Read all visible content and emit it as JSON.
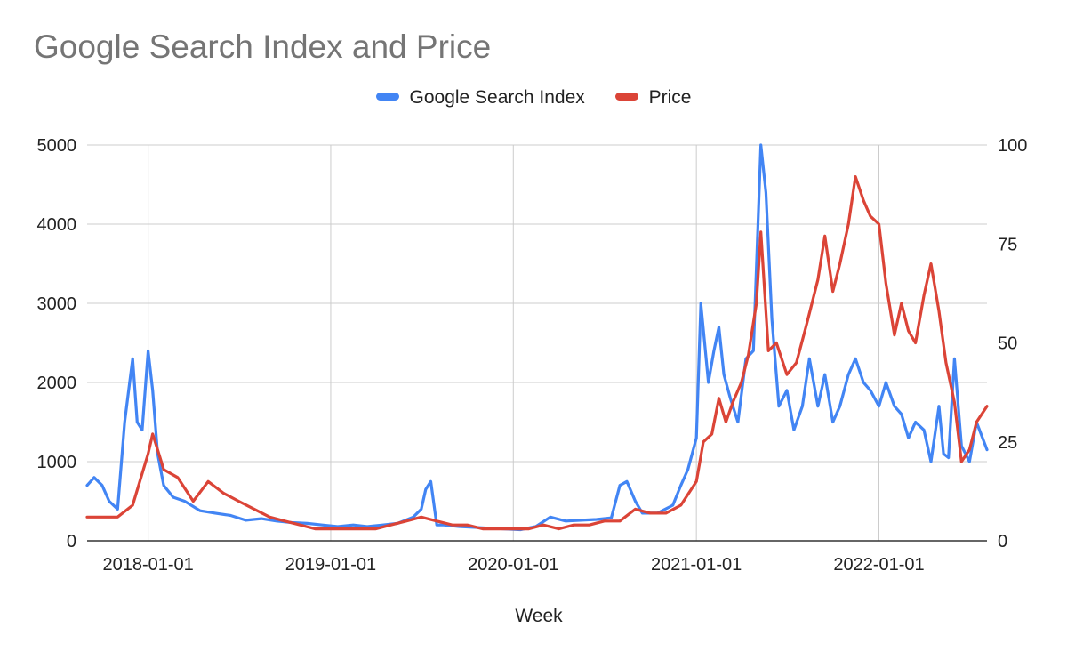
{
  "chart_data": {
    "type": "line",
    "title": "Google Search Index and Price",
    "xlabel": "Week",
    "ylabel_left": "",
    "ylabel_right": "",
    "x_start": "2017-09-01",
    "x_end": "2022-08-05",
    "y_left_lim": [
      0,
      5000
    ],
    "y_left_ticks": [
      "0",
      "1000",
      "2000",
      "3000",
      "4000",
      "5000"
    ],
    "y_right_lim": [
      0,
      100
    ],
    "y_right_ticks": [
      "0",
      "25",
      "50",
      "75",
      "100"
    ],
    "x_ticks": [
      "2018-01-01",
      "2019-01-01",
      "2020-01-01",
      "2021-01-01",
      "2022-01-01"
    ],
    "grid": true,
    "legend_position": "top",
    "series": [
      {
        "name": "Google Search Index",
        "axis": "left",
        "color": "#4285f4",
        "points": [
          [
            "2017-09-01",
            700
          ],
          [
            "2017-09-15",
            800
          ],
          [
            "2017-10-01",
            700
          ],
          [
            "2017-10-15",
            500
          ],
          [
            "2017-11-01",
            400
          ],
          [
            "2017-11-15",
            1500
          ],
          [
            "2017-12-01",
            2300
          ],
          [
            "2017-12-10",
            1500
          ],
          [
            "2017-12-20",
            1400
          ],
          [
            "2018-01-01",
            2400
          ],
          [
            "2018-01-10",
            1900
          ],
          [
            "2018-01-20",
            1100
          ],
          [
            "2018-02-01",
            700
          ],
          [
            "2018-02-20",
            550
          ],
          [
            "2018-03-15",
            500
          ],
          [
            "2018-04-15",
            380
          ],
          [
            "2018-05-15",
            350
          ],
          [
            "2018-06-15",
            320
          ],
          [
            "2018-07-15",
            260
          ],
          [
            "2018-08-15",
            280
          ],
          [
            "2018-09-15",
            250
          ],
          [
            "2018-10-15",
            230
          ],
          [
            "2018-11-15",
            220
          ],
          [
            "2018-12-15",
            200
          ],
          [
            "2019-01-15",
            180
          ],
          [
            "2019-02-15",
            200
          ],
          [
            "2019-03-15",
            180
          ],
          [
            "2019-04-15",
            200
          ],
          [
            "2019-05-15",
            220
          ],
          [
            "2019-06-15",
            300
          ],
          [
            "2019-07-01",
            400
          ],
          [
            "2019-07-10",
            650
          ],
          [
            "2019-07-20",
            750
          ],
          [
            "2019-08-01",
            200
          ],
          [
            "2019-08-15",
            200
          ],
          [
            "2019-09-15",
            180
          ],
          [
            "2019-10-15",
            170
          ],
          [
            "2019-11-15",
            160
          ],
          [
            "2019-12-15",
            150
          ],
          [
            "2020-01-15",
            140
          ],
          [
            "2020-02-15",
            180
          ],
          [
            "2020-03-15",
            300
          ],
          [
            "2020-04-15",
            250
          ],
          [
            "2020-05-15",
            260
          ],
          [
            "2020-06-15",
            270
          ],
          [
            "2020-07-15",
            290
          ],
          [
            "2020-08-01",
            700
          ],
          [
            "2020-08-15",
            750
          ],
          [
            "2020-09-01",
            500
          ],
          [
            "2020-09-15",
            350
          ],
          [
            "2020-10-15",
            350
          ],
          [
            "2020-11-15",
            450
          ],
          [
            "2020-12-01",
            700
          ],
          [
            "2020-12-15",
            900
          ],
          [
            "2021-01-01",
            1300
          ],
          [
            "2021-01-10",
            3000
          ],
          [
            "2021-01-25",
            2000
          ],
          [
            "2021-02-05",
            2400
          ],
          [
            "2021-02-15",
            2700
          ],
          [
            "2021-02-25",
            2100
          ],
          [
            "2021-03-10",
            1800
          ],
          [
            "2021-03-25",
            1500
          ],
          [
            "2021-04-10",
            2300
          ],
          [
            "2021-04-25",
            2400
          ],
          [
            "2021-05-10",
            5000
          ],
          [
            "2021-05-20",
            4400
          ],
          [
            "2021-06-01",
            2800
          ],
          [
            "2021-06-15",
            1700
          ],
          [
            "2021-07-01",
            1900
          ],
          [
            "2021-07-15",
            1400
          ],
          [
            "2021-08-01",
            1700
          ],
          [
            "2021-08-15",
            2300
          ],
          [
            "2021-09-01",
            1700
          ],
          [
            "2021-09-15",
            2100
          ],
          [
            "2021-10-01",
            1500
          ],
          [
            "2021-10-15",
            1700
          ],
          [
            "2021-11-01",
            2100
          ],
          [
            "2021-11-15",
            2300
          ],
          [
            "2021-12-01",
            2000
          ],
          [
            "2021-12-15",
            1900
          ],
          [
            "2022-01-01",
            1700
          ],
          [
            "2022-01-15",
            2000
          ],
          [
            "2022-02-01",
            1700
          ],
          [
            "2022-02-15",
            1600
          ],
          [
            "2022-03-01",
            1300
          ],
          [
            "2022-03-15",
            1500
          ],
          [
            "2022-04-01",
            1400
          ],
          [
            "2022-04-15",
            1000
          ],
          [
            "2022-05-01",
            1700
          ],
          [
            "2022-05-10",
            1100
          ],
          [
            "2022-05-20",
            1050
          ],
          [
            "2022-06-01",
            2300
          ],
          [
            "2022-06-15",
            1200
          ],
          [
            "2022-07-01",
            1000
          ],
          [
            "2022-07-15",
            1500
          ],
          [
            "2022-08-05",
            1150
          ]
        ]
      },
      {
        "name": "Price",
        "axis": "right",
        "color": "#db4437",
        "points": [
          [
            "2017-09-01",
            6
          ],
          [
            "2017-10-01",
            6
          ],
          [
            "2017-11-01",
            6
          ],
          [
            "2017-12-01",
            9
          ],
          [
            "2018-01-01",
            22
          ],
          [
            "2018-01-10",
            27
          ],
          [
            "2018-01-20",
            23
          ],
          [
            "2018-02-01",
            18
          ],
          [
            "2018-03-01",
            16
          ],
          [
            "2018-04-01",
            10
          ],
          [
            "2018-05-01",
            15
          ],
          [
            "2018-06-01",
            12
          ],
          [
            "2018-07-01",
            10
          ],
          [
            "2018-08-01",
            8
          ],
          [
            "2018-09-01",
            6
          ],
          [
            "2018-10-01",
            5
          ],
          [
            "2018-11-01",
            4
          ],
          [
            "2018-12-01",
            3
          ],
          [
            "2019-01-01",
            3
          ],
          [
            "2019-02-01",
            3
          ],
          [
            "2019-03-01",
            3
          ],
          [
            "2019-04-01",
            3
          ],
          [
            "2019-05-01",
            4
          ],
          [
            "2019-06-01",
            5
          ],
          [
            "2019-07-01",
            6
          ],
          [
            "2019-08-01",
            5
          ],
          [
            "2019-09-01",
            4
          ],
          [
            "2019-10-01",
            4
          ],
          [
            "2019-11-01",
            3
          ],
          [
            "2019-12-01",
            3
          ],
          [
            "2020-01-01",
            3
          ],
          [
            "2020-02-01",
            3
          ],
          [
            "2020-03-01",
            4
          ],
          [
            "2020-04-01",
            3
          ],
          [
            "2020-05-01",
            4
          ],
          [
            "2020-06-01",
            4
          ],
          [
            "2020-07-01",
            5
          ],
          [
            "2020-08-01",
            5
          ],
          [
            "2020-09-01",
            8
          ],
          [
            "2020-10-01",
            7
          ],
          [
            "2020-11-01",
            7
          ],
          [
            "2020-12-01",
            9
          ],
          [
            "2021-01-01",
            15
          ],
          [
            "2021-01-15",
            25
          ],
          [
            "2021-02-01",
            27
          ],
          [
            "2021-02-15",
            36
          ],
          [
            "2021-03-01",
            30
          ],
          [
            "2021-03-15",
            35
          ],
          [
            "2021-04-01",
            40
          ],
          [
            "2021-04-15",
            47
          ],
          [
            "2021-05-01",
            60
          ],
          [
            "2021-05-10",
            78
          ],
          [
            "2021-05-25",
            48
          ],
          [
            "2021-06-10",
            50
          ],
          [
            "2021-07-01",
            42
          ],
          [
            "2021-07-20",
            45
          ],
          [
            "2021-08-10",
            55
          ],
          [
            "2021-09-01",
            66
          ],
          [
            "2021-09-15",
            77
          ],
          [
            "2021-10-01",
            63
          ],
          [
            "2021-10-15",
            70
          ],
          [
            "2021-11-01",
            80
          ],
          [
            "2021-11-15",
            92
          ],
          [
            "2021-12-01",
            86
          ],
          [
            "2021-12-15",
            82
          ],
          [
            "2022-01-01",
            80
          ],
          [
            "2022-01-15",
            65
          ],
          [
            "2022-02-01",
            52
          ],
          [
            "2022-02-15",
            60
          ],
          [
            "2022-03-01",
            53
          ],
          [
            "2022-03-15",
            50
          ],
          [
            "2022-04-01",
            62
          ],
          [
            "2022-04-15",
            70
          ],
          [
            "2022-05-01",
            58
          ],
          [
            "2022-05-15",
            45
          ],
          [
            "2022-06-01",
            35
          ],
          [
            "2022-06-15",
            20
          ],
          [
            "2022-07-01",
            23
          ],
          [
            "2022-07-15",
            30
          ],
          [
            "2022-08-05",
            34
          ]
        ]
      }
    ]
  }
}
